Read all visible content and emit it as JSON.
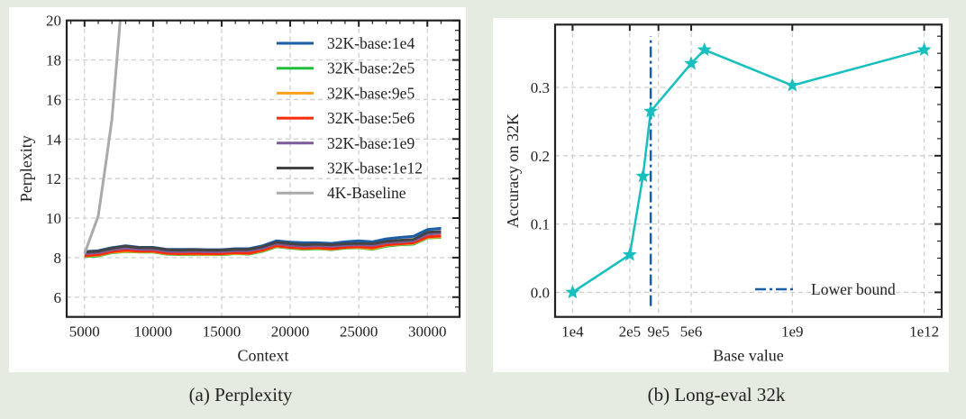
{
  "colors": {
    "background": "#e6ebe2",
    "panel": "#ffffff"
  },
  "captions": {
    "a": "(a) Perplexity",
    "b": "(b) Long-eval 32k"
  },
  "chart_data": [
    {
      "type": "line",
      "xlabel": "Context",
      "ylabel": "Perplexity",
      "xlim": [
        3700,
        32350
      ],
      "ylim": [
        5,
        20
      ],
      "xticks": [
        5000,
        10000,
        15000,
        20000,
        25000,
        30000
      ],
      "yticks": [
        6,
        8,
        10,
        12,
        14,
        16,
        18,
        20
      ],
      "grid": true,
      "legend_position": "top-right",
      "x": [
        5000,
        6000,
        7000,
        8000,
        9000,
        10000,
        11000,
        12000,
        13000,
        14000,
        15000,
        16000,
        17000,
        18000,
        19000,
        20000,
        21000,
        22000,
        23000,
        24000,
        25000,
        26000,
        27000,
        28000,
        29000,
        30000,
        31000
      ],
      "series": [
        {
          "name": "32K-base:1e4",
          "color": "#1a5ea8",
          "values": [
            8.3,
            8.35,
            8.5,
            8.6,
            8.52,
            8.52,
            8.42,
            8.42,
            8.42,
            8.4,
            8.4,
            8.45,
            8.45,
            8.6,
            8.85,
            8.78,
            8.75,
            8.75,
            8.72,
            8.8,
            8.85,
            8.8,
            8.95,
            9.02,
            9.08,
            9.42,
            9.48
          ]
        },
        {
          "name": "32K-base:2e5",
          "color": "#1fbf3a",
          "values": [
            8.05,
            8.08,
            8.25,
            8.3,
            8.28,
            8.28,
            8.18,
            8.15,
            8.15,
            8.15,
            8.15,
            8.2,
            8.18,
            8.32,
            8.55,
            8.48,
            8.42,
            8.45,
            8.4,
            8.48,
            8.5,
            8.42,
            8.58,
            8.65,
            8.68,
            9.0,
            9.02
          ]
        },
        {
          "name": "32K-base:9e5",
          "color": "#ffa01c",
          "values": [
            8.08,
            8.12,
            8.28,
            8.32,
            8.3,
            8.3,
            8.2,
            8.18,
            8.18,
            8.16,
            8.18,
            8.22,
            8.2,
            8.35,
            8.58,
            8.5,
            8.45,
            8.48,
            8.42,
            8.5,
            8.52,
            8.45,
            8.62,
            8.68,
            8.72,
            9.02,
            9.05
          ]
        },
        {
          "name": "32K-base:5e6",
          "color": "#ff2a0a",
          "values": [
            8.1,
            8.15,
            8.3,
            8.38,
            8.33,
            8.33,
            8.22,
            8.2,
            8.22,
            8.2,
            8.2,
            8.25,
            8.22,
            8.38,
            8.6,
            8.52,
            8.48,
            8.5,
            8.45,
            8.52,
            8.55,
            8.5,
            8.65,
            8.7,
            8.75,
            9.05,
            9.1
          ]
        },
        {
          "name": "32K-base:1e9",
          "color": "#7d5c9c",
          "values": [
            8.2,
            8.25,
            8.4,
            8.48,
            8.42,
            8.42,
            8.32,
            8.3,
            8.32,
            8.3,
            8.3,
            8.35,
            8.35,
            8.48,
            8.7,
            8.62,
            8.58,
            8.6,
            8.58,
            8.62,
            8.65,
            8.62,
            8.75,
            8.8,
            8.85,
            9.18,
            9.25
          ]
        },
        {
          "name": "32K-base:1e12",
          "color": "#444444",
          "values": [
            8.28,
            8.32,
            8.48,
            8.58,
            8.5,
            8.5,
            8.4,
            8.38,
            8.4,
            8.38,
            8.38,
            8.42,
            8.42,
            8.55,
            8.78,
            8.7,
            8.65,
            8.68,
            8.65,
            8.7,
            8.72,
            8.7,
            8.82,
            8.88,
            8.92,
            9.28,
            9.32
          ]
        },
        {
          "name": "4K-Baseline",
          "color": "#aaaaaa",
          "x": [
            5000,
            6000,
            6500,
            7000,
            7600
          ],
          "values": [
            8.2,
            10.1,
            12.5,
            15.0,
            20.0
          ]
        }
      ]
    },
    {
      "type": "line",
      "xlabel": "Base value",
      "ylabel": "Accuracy on 32K",
      "xscale": "log",
      "xlim": [
        4000.0,
        2500000000000.0
      ],
      "ylim": [
        -0.036,
        0.392
      ],
      "xticks": [
        10000.0,
        200000.0,
        900000.0,
        5000000.0,
        1000000000.0,
        1000000000000.0
      ],
      "xticklabels": [
        "1e4",
        "2e5",
        "9e5",
        "5e6",
        "1e9",
        "1e12"
      ],
      "yticks": [
        0.0,
        0.1,
        0.2,
        0.3
      ],
      "yticklabels": [
        "0.0",
        "0.1",
        "0.2",
        "0.3"
      ],
      "grid": true,
      "legend_position": "bottom-right",
      "series": [
        {
          "color": "#17bfbf",
          "marker": "star",
          "x": [
            10000.0,
            200000.0,
            400000.0,
            600000.0,
            5000000.0,
            10000000.0,
            1000000000.0,
            1000000000000.0
          ],
          "values": [
            0.0,
            0.055,
            0.17,
            0.265,
            0.335,
            0.355,
            0.303,
            0.355
          ]
        }
      ],
      "vline": {
        "name": "Lower bound",
        "x": 600000.0,
        "color": "#1a5ea8",
        "style": "dash-dot",
        "yrange": [
          -0.02,
          0.375
        ]
      }
    }
  ]
}
